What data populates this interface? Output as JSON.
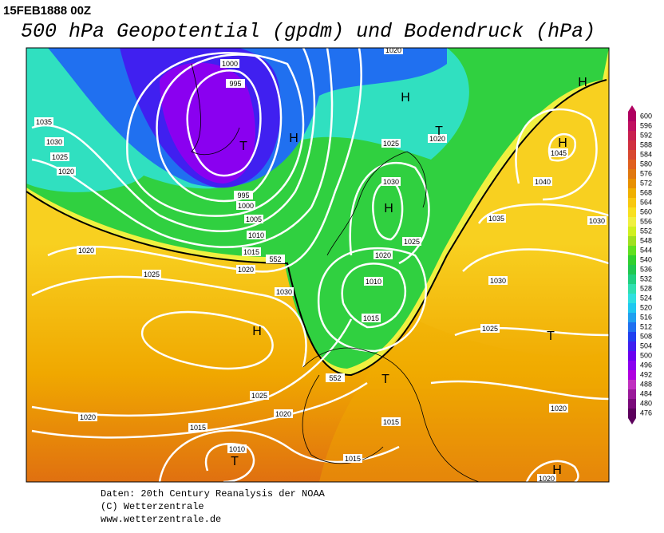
{
  "header": {
    "timestamp": "15FEB1888 00Z",
    "title": "500 hPa Geopotential (gpdm) und Bodendruck (hPa)"
  },
  "map": {
    "pressure_labels": [
      1020,
      1000,
      995,
      1035,
      1030,
      1025,
      1020,
      995,
      1000,
      1005,
      1010,
      1015,
      1020,
      552,
      1020,
      1025,
      1030,
      1025,
      1030,
      1025,
      1020,
      1010,
      1015,
      1020,
      1045,
      1040,
      1035,
      1030,
      1030,
      1025,
      1025,
      1020,
      1020,
      1015,
      1010,
      1015,
      1015,
      1020,
      1020,
      552
    ],
    "centers": [
      "H",
      "H",
      "T",
      "H",
      "T",
      "H",
      "H",
      "H",
      "T",
      "T",
      "T",
      "H"
    ]
  },
  "colorbar": {
    "levels": [
      600,
      596,
      592,
      588,
      584,
      580,
      576,
      572,
      568,
      564,
      560,
      556,
      552,
      548,
      544,
      540,
      536,
      532,
      528,
      524,
      520,
      516,
      512,
      508,
      504,
      500,
      496,
      492,
      488,
      484,
      480,
      476
    ],
    "colors": [
      "#b00060",
      "#c01060",
      "#c82050",
      "#d03040",
      "#d84830",
      "#e06020",
      "#e07810",
      "#e89000",
      "#f0b000",
      "#f8c810",
      "#f8e020",
      "#f0f040",
      "#d0f020",
      "#a0e020",
      "#60e020",
      "#30d030",
      "#20c850",
      "#20d080",
      "#30e0b0",
      "#30e0e0",
      "#20c8f0",
      "#20a0f0",
      "#2070f0",
      "#2040f0",
      "#4020f0",
      "#6a00f0",
      "#8a00f0",
      "#b000e0",
      "#c030c0",
      "#9a1a9a",
      "#7a0a7a",
      "#5c005c"
    ]
  },
  "footer": {
    "lines": [
      "Daten: 20th Century Reanalysis der NOAA",
      "(C) Wetterzentrale",
      "www.wetterzentrale.de"
    ]
  }
}
